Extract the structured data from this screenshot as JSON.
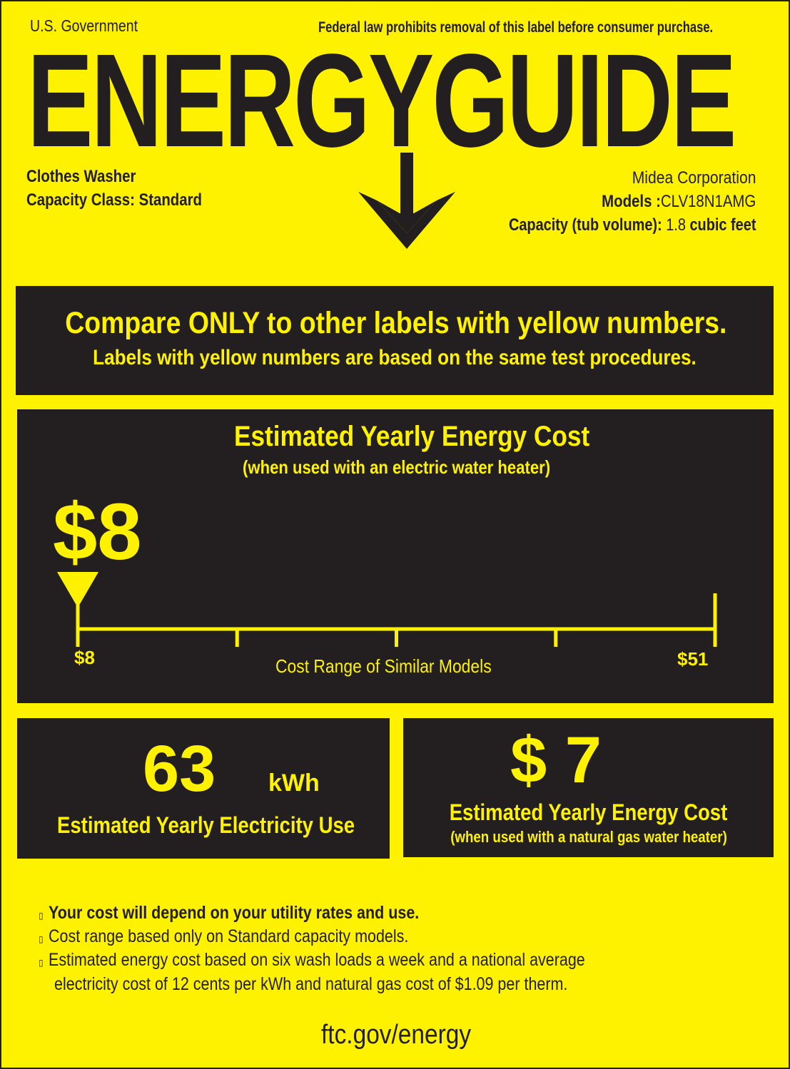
{
  "header": {
    "left": "U.S. Government",
    "right": "Federal law prohibits removal of this label before consumer purchase.",
    "title": "ENERGYGUIDE"
  },
  "product": {
    "type": "Clothes Washer",
    "capacity_class": "Capacity Class: Standard",
    "manufacturer": "Midea Corporation",
    "models_label": "Models :",
    "model": "CLV18N1AMG",
    "capacity_label": "Capacity (tub volume):",
    "capacity_value": "1.8",
    "capacity_unit": "cubic feet"
  },
  "compare": {
    "line1": "Compare ONLY to other labels with yellow numbers.",
    "line2": "Labels with yellow numbers are based on the same test procedures."
  },
  "cost": {
    "title": "Estimated Yearly Energy Cost",
    "subtitle": "(when used with an electric water heater)",
    "value": "$8",
    "amount": 8,
    "range_min": 8,
    "range_max": 51,
    "range_min_label": "$8",
    "range_max_label": "$51",
    "range_label": "Cost Range of Similar Models"
  },
  "electricity": {
    "value": "63",
    "unit": "kWh",
    "label": "Estimated Yearly Electricity Use"
  },
  "gas_cost": {
    "value": "$ 7",
    "title": "Estimated Yearly Energy Cost",
    "subtitle": "(when used with a natural gas water heater)"
  },
  "notes": [
    "Your cost will depend on your utility rates and use.",
    "Cost range based only on Standard capacity models.",
    "Estimated energy cost based on six wash loads a week and a national average",
    "electricity cost of 12 cents per kWh and natural gas cost of $1.09 per therm."
  ],
  "footer": "ftc.gov/energy",
  "colors": {
    "label_yellow": "#fff200",
    "label_black": "#231f20"
  }
}
